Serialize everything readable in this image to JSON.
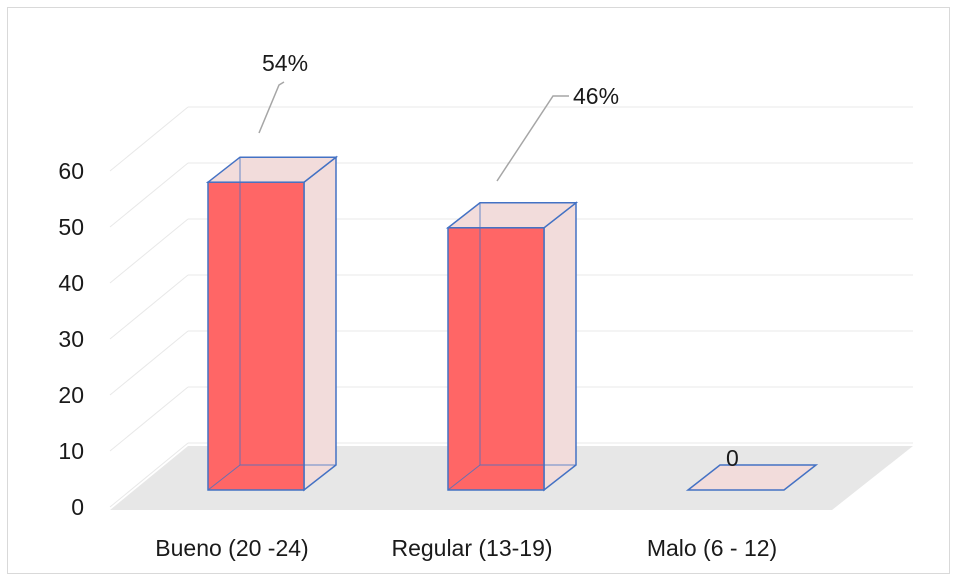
{
  "chart_data": {
    "type": "bar",
    "style": "3d-column",
    "categories": [
      "Bueno (20 -24)",
      "Regular (13-19)",
      "Malo (6 - 12)"
    ],
    "values": [
      54,
      46,
      0
    ],
    "data_labels": [
      "54%",
      "46%",
      "0"
    ],
    "ylim": [
      0,
      60
    ],
    "yticks": [
      "0",
      "10",
      "20",
      "30",
      "40",
      "50",
      "60"
    ],
    "grid": true,
    "legend": "none",
    "colors": {
      "bar_front": "#ff6666",
      "bar_side": "#f2dcdb",
      "bar_edge": "#4472c4",
      "floor": "#e7e7e7",
      "grid": "#e8e8e8",
      "leader": "#a6a6a6"
    }
  }
}
